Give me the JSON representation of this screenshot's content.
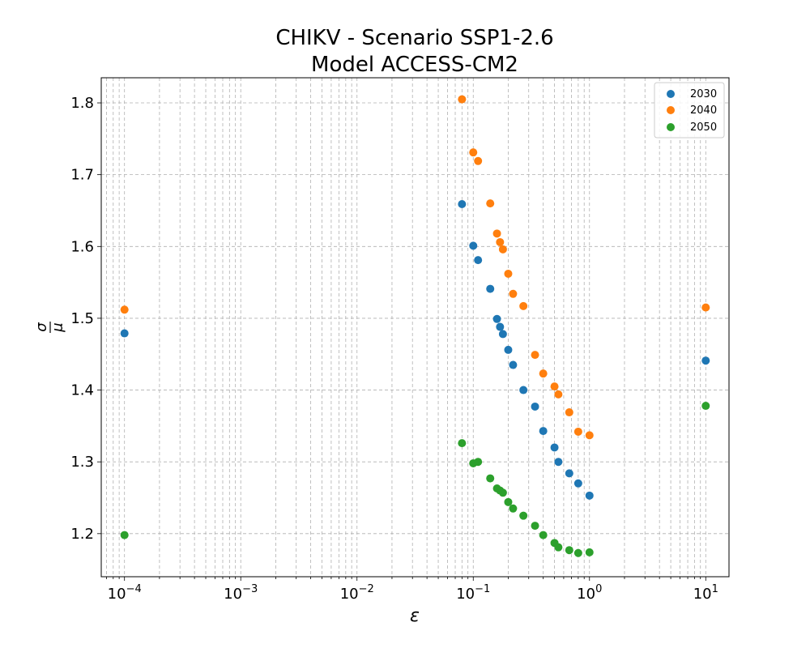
{
  "chart_data": {
    "type": "scatter",
    "title_lines": [
      "CHIKV - Scenario SSP1-2.6",
      "Model ACCESS-CM2"
    ],
    "xlabel": "ε",
    "ylabel": "σ/μ",
    "ylabel_num": "σ",
    "ylabel_den": "μ",
    "xscale": "log",
    "xlim": [
      6.31e-05,
      15.85
    ],
    "ylim": [
      1.14,
      1.835
    ],
    "x_ticks": [
      {
        "value": 0.0001,
        "base": "10",
        "exp": "−4"
      },
      {
        "value": 0.001,
        "base": "10",
        "exp": "−3"
      },
      {
        "value": 0.01,
        "base": "10",
        "exp": "−2"
      },
      {
        "value": 0.1,
        "base": "10",
        "exp": "−1"
      },
      {
        "value": 1,
        "base": "10",
        "exp": "0"
      },
      {
        "value": 10,
        "base": "10",
        "exp": "1"
      }
    ],
    "y_ticks": [
      {
        "value": 1.2,
        "label": "1.2"
      },
      {
        "value": 1.3,
        "label": "1.3"
      },
      {
        "value": 1.4,
        "label": "1.4"
      },
      {
        "value": 1.5,
        "label": "1.5"
      },
      {
        "value": 1.6,
        "label": "1.6"
      },
      {
        "value": 1.7,
        "label": "1.7"
      },
      {
        "value": 1.8,
        "label": "1.8"
      }
    ],
    "grid": true,
    "legend_position": "top-right",
    "x": [
      0.0001,
      0.08,
      0.1,
      0.11,
      0.14,
      0.16,
      0.17,
      0.18,
      0.2,
      0.22,
      0.27,
      0.34,
      0.4,
      0.5,
      0.54,
      0.67,
      0.8,
      1.0,
      10.0
    ],
    "series": [
      {
        "name": "2030",
        "color": "#1f77b4",
        "values": [
          1.479,
          1.659,
          1.601,
          1.581,
          1.541,
          1.499,
          1.488,
          1.478,
          1.456,
          1.435,
          1.4,
          1.377,
          1.343,
          1.32,
          1.3,
          1.284,
          1.27,
          1.253,
          1.441
        ]
      },
      {
        "name": "2040",
        "color": "#ff7f0e",
        "values": [
          1.512,
          1.805,
          1.731,
          1.719,
          1.66,
          1.618,
          1.606,
          1.596,
          1.562,
          1.534,
          1.517,
          1.449,
          1.423,
          1.405,
          1.394,
          1.369,
          1.342,
          1.337,
          1.515
        ]
      },
      {
        "name": "2050",
        "color": "#2ca02c",
        "values": [
          1.198,
          1.326,
          1.298,
          1.3,
          1.277,
          1.263,
          1.26,
          1.257,
          1.244,
          1.235,
          1.225,
          1.211,
          1.198,
          1.187,
          1.181,
          1.177,
          1.173,
          1.174,
          1.378
        ]
      }
    ]
  }
}
